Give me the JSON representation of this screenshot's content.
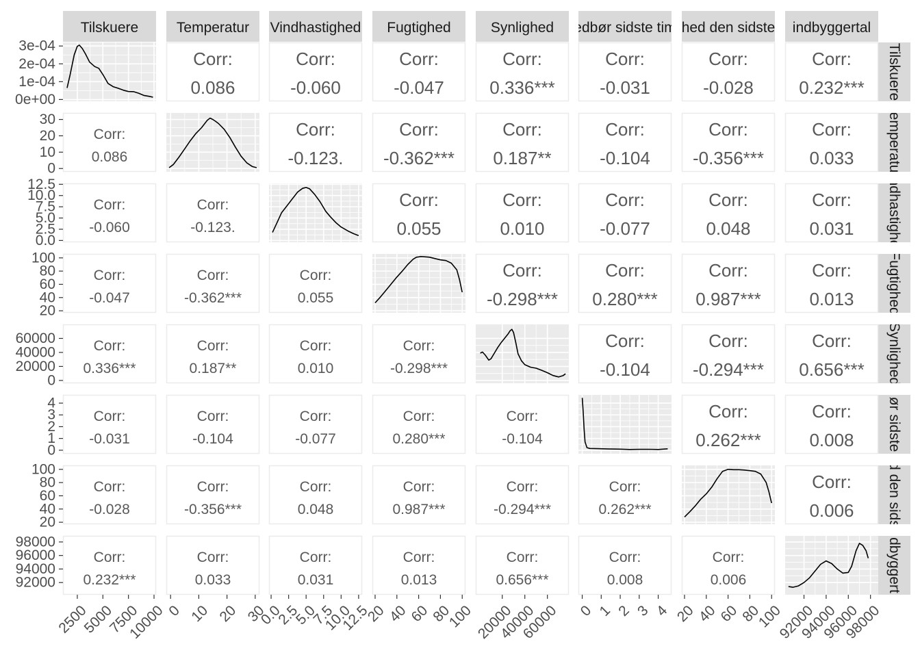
{
  "chart_data": {
    "type": "pairs-plot",
    "variables": [
      {
        "strip": "Tilskuere",
        "row_strip": "Tilskuere"
      },
      {
        "strip": "Temperatur",
        "row_strip": "emperatu"
      },
      {
        "strip": "Vindhastighed",
        "row_strip": "ndhastighe"
      },
      {
        "strip": "Fugtighed",
        "row_strip": "Fugtighed"
      },
      {
        "strip": "Synlighed",
        "row_strip": "Synlighed"
      },
      {
        "strip": "edbør sidste tim",
        "row_strip": "ør sidste"
      },
      {
        "strip": "hed den sidste",
        "row_strip": "d den sids"
      },
      {
        "strip": "indbyggertal",
        "row_strip": "dbyggert"
      }
    ],
    "corr_label": "Corr:",
    "correlations": [
      [
        "",
        "0.086",
        "-0.060",
        "-0.047",
        "0.336***",
        "-0.031",
        "-0.028",
        "0.232***"
      ],
      [
        "0.086",
        "",
        "-0.123.",
        "-0.362***",
        "0.187**",
        "-0.104",
        "-0.356***",
        "0.033"
      ],
      [
        "-0.060",
        "-0.123.",
        "",
        "0.055",
        "0.010",
        "-0.077",
        "0.048",
        "0.031"
      ],
      [
        "-0.047",
        "-0.362***",
        "0.055",
        "",
        "-0.298***",
        "0.280***",
        "0.987***",
        "0.013"
      ],
      [
        "0.336***",
        "0.187**",
        "0.010",
        "-0.298***",
        "",
        "-0.104",
        "-0.294***",
        "0.656***"
      ],
      [
        "-0.031",
        "-0.104",
        "-0.077",
        "0.280***",
        "-0.104",
        "",
        "0.262***",
        "0.008"
      ],
      [
        "-0.028",
        "-0.356***",
        "0.048",
        "0.987***",
        "-0.294***",
        "0.262***",
        "",
        "0.006"
      ],
      [
        "0.232***",
        "0.033",
        "0.031",
        "0.013",
        "0.656***",
        "0.008",
        "0.006",
        ""
      ]
    ],
    "x_axes": [
      {
        "range": [
          1100,
          10200
        ],
        "ticks": [
          2500,
          5000,
          7500,
          10000
        ],
        "labels": [
          "2500",
          "5000",
          "7500",
          "10000"
        ]
      },
      {
        "range": [
          -1.5,
          31.5
        ],
        "ticks": [
          0,
          10,
          20,
          30
        ],
        "labels": [
          "0",
          "10",
          "20",
          "30"
        ]
      },
      {
        "range": [
          -0.3,
          13.0
        ],
        "ticks": [
          0,
          2.5,
          5,
          7.5,
          10,
          12.5
        ],
        "labels": [
          "0.0",
          "2.5",
          "5.0",
          "7.5",
          "10.0",
          "12.5"
        ]
      },
      {
        "range": [
          17.5,
          103
        ],
        "ticks": [
          20,
          40,
          60,
          80,
          100
        ],
        "labels": [
          "20",
          "40",
          "60",
          "80",
          "100"
        ]
      },
      {
        "range": [
          -3500,
          79000
        ],
        "ticks": [
          20000,
          40000,
          60000
        ],
        "labels": [
          "20000",
          "40000",
          "60000"
        ]
      },
      {
        "range": [
          -0.2,
          4.7
        ],
        "ticks": [
          0,
          1,
          2,
          3,
          4
        ],
        "labels": [
          "0",
          "1",
          "2",
          "3",
          "4"
        ]
      },
      {
        "range": [
          17.5,
          103
        ],
        "ticks": [
          20,
          40,
          60,
          80,
          100
        ],
        "labels": [
          "20",
          "40",
          "60",
          "80",
          "100"
        ]
      },
      {
        "range": [
          90300,
          98700
        ],
        "ticks": [
          92000,
          94000,
          96000,
          98000
        ],
        "labels": [
          "92000",
          "94000",
          "96000",
          "98000"
        ]
      }
    ],
    "y_axes": [
      {
        "range": [
          -1e-05,
          0.00032
        ],
        "ticks": [
          0,
          0.0001,
          0.0002,
          0.0003
        ],
        "labels": [
          "0e+00",
          "1e-04",
          "2e-04",
          "3e-04"
        ]
      },
      {
        "range": [
          -2,
          34
        ],
        "ticks": [
          0,
          10,
          20,
          30
        ],
        "labels": [
          "0",
          "10",
          "20",
          "30"
        ]
      },
      {
        "range": [
          -0.4,
          12.7
        ],
        "ticks": [
          0,
          2.5,
          5,
          7.5,
          10,
          12.5
        ],
        "labels": [
          "0.0",
          "2.5",
          "5.0",
          "7.5",
          "10.0",
          "12.5"
        ]
      },
      {
        "range": [
          17,
          106
        ],
        "ticks": [
          20,
          40,
          60,
          80,
          100
        ],
        "labels": [
          "20",
          "40",
          "60",
          "80",
          "100"
        ]
      },
      {
        "range": [
          -4000,
          80000
        ],
        "ticks": [
          0,
          20000,
          40000,
          60000
        ],
        "labels": [
          "0",
          "20000",
          "40000",
          "60000"
        ]
      },
      {
        "range": [
          -0.3,
          4.7
        ],
        "ticks": [
          0,
          1,
          2,
          3,
          4
        ],
        "labels": [
          "0",
          "1",
          "2",
          "3",
          "4"
        ]
      },
      {
        "range": [
          17,
          106
        ],
        "ticks": [
          20,
          40,
          60,
          80,
          100
        ],
        "labels": [
          "20",
          "40",
          "60",
          "80",
          "100"
        ]
      },
      {
        "range": [
          90200,
          98900
        ],
        "ticks": [
          92000,
          94000,
          96000,
          98000
        ],
        "labels": [
          "92000",
          "94000",
          "96000",
          "98000"
        ]
      }
    ],
    "densities": [
      [
        [
          1500,
          6.5e-05
        ],
        [
          1800,
          0.00014
        ],
        [
          2200,
          0.00025
        ],
        [
          2500,
          0.000298
        ],
        [
          2700,
          0.000305
        ],
        [
          3000,
          0.000285
        ],
        [
          3300,
          0.000255
        ],
        [
          3700,
          0.00021
        ],
        [
          4200,
          0.000185
        ],
        [
          4600,
          0.000175
        ],
        [
          5000,
          0.00014
        ],
        [
          5500,
          9e-05
        ],
        [
          6000,
          7.2e-05
        ],
        [
          6500,
          6.3e-05
        ],
        [
          7000,
          5.2e-05
        ],
        [
          7500,
          4.5e-05
        ],
        [
          8000,
          4.4e-05
        ],
        [
          8500,
          3.5e-05
        ],
        [
          9000,
          2.3e-05
        ],
        [
          9500,
          1.8e-05
        ],
        [
          9900,
          1.3e-05
        ]
      ],
      [
        [
          -0.5,
          0.5
        ],
        [
          1,
          2.5
        ],
        [
          3,
          7
        ],
        [
          5,
          12
        ],
        [
          7,
          17
        ],
        [
          9,
          21.5
        ],
        [
          11,
          25
        ],
        [
          13,
          29.5
        ],
        [
          14,
          30.8
        ],
        [
          15,
          30
        ],
        [
          16,
          28.8
        ],
        [
          17,
          27.5
        ],
        [
          19,
          24
        ],
        [
          21,
          19
        ],
        [
          23,
          13
        ],
        [
          25,
          7.5
        ],
        [
          27,
          3.5
        ],
        [
          29,
          1.2
        ],
        [
          30.5,
          0.5
        ]
      ],
      [
        [
          0.2,
          1.8
        ],
        [
          0.8,
          3.8
        ],
        [
          1.5,
          6.2
        ],
        [
          2.3,
          7.8
        ],
        [
          3,
          9.2
        ],
        [
          3.8,
          10.8
        ],
        [
          4.5,
          11.6
        ],
        [
          5,
          11.8
        ],
        [
          5.5,
          11.5
        ],
        [
          6.2,
          10.3
        ],
        [
          7,
          8.6
        ],
        [
          7.8,
          6.5
        ],
        [
          8.5,
          5.2
        ],
        [
          9.3,
          3.9
        ],
        [
          10,
          3
        ],
        [
          11,
          2.1
        ],
        [
          11.8,
          1.5
        ],
        [
          12.5,
          1.1
        ]
      ],
      [
        [
          20,
          32
        ],
        [
          25,
          41
        ],
        [
          30,
          51
        ],
        [
          35,
          61
        ],
        [
          40,
          71
        ],
        [
          45,
          80
        ],
        [
          50,
          90
        ],
        [
          55,
          98
        ],
        [
          58,
          101
        ],
        [
          62,
          102
        ],
        [
          66,
          101.5
        ],
        [
          70,
          101
        ],
        [
          75,
          99
        ],
        [
          80,
          97
        ],
        [
          85,
          96
        ],
        [
          90,
          92
        ],
        [
          95,
          82
        ],
        [
          97.5,
          67
        ],
        [
          100,
          48
        ]
      ],
      [
        [
          500,
          39000
        ],
        [
          2500,
          40500
        ],
        [
          5000,
          36000
        ],
        [
          8000,
          29000
        ],
        [
          10000,
          31000
        ],
        [
          13000,
          39000
        ],
        [
          16000,
          47000
        ],
        [
          19000,
          54000
        ],
        [
          22000,
          60000
        ],
        [
          25000,
          66000
        ],
        [
          27000,
          71000
        ],
        [
          28500,
          73000
        ],
        [
          30000,
          68500
        ],
        [
          32000,
          54000
        ],
        [
          34000,
          38000
        ],
        [
          37000,
          28000
        ],
        [
          40000,
          22500
        ],
        [
          45000,
          19000
        ],
        [
          50000,
          17500
        ],
        [
          55000,
          14500
        ],
        [
          60000,
          11000
        ],
        [
          65000,
          7000
        ],
        [
          70000,
          5000
        ],
        [
          74000,
          7000
        ],
        [
          76000,
          9500
        ]
      ],
      [
        [
          0,
          4.45
        ],
        [
          0.05,
          3.3
        ],
        [
          0.1,
          1.8
        ],
        [
          0.15,
          0.7
        ],
        [
          0.25,
          0.22
        ],
        [
          0.4,
          0.15
        ],
        [
          0.8,
          0.13
        ],
        [
          1.5,
          0.1
        ],
        [
          2,
          0.09
        ],
        [
          2.5,
          0.06
        ],
        [
          3,
          0.07
        ],
        [
          3.5,
          0.08
        ],
        [
          4,
          0.06
        ],
        [
          4.5,
          0.12
        ]
      ],
      [
        [
          20,
          28
        ],
        [
          25,
          36
        ],
        [
          30,
          45
        ],
        [
          35,
          55
        ],
        [
          40,
          63
        ],
        [
          45,
          73
        ],
        [
          50,
          86
        ],
        [
          55,
          97
        ],
        [
          60,
          100
        ],
        [
          65,
          99.5
        ],
        [
          70,
          99.5
        ],
        [
          75,
          99
        ],
        [
          80,
          98
        ],
        [
          85,
          97
        ],
        [
          90,
          93
        ],
        [
          95,
          80
        ],
        [
          97.5,
          66
        ],
        [
          100,
          49
        ]
      ],
      [
        [
          90600,
          91400
        ],
        [
          91000,
          91300
        ],
        [
          91500,
          91500
        ],
        [
          92000,
          92000
        ],
        [
          92500,
          92700
        ],
        [
          93000,
          93700
        ],
        [
          93500,
          94700
        ],
        [
          94000,
          95200
        ],
        [
          94500,
          94800
        ],
        [
          95000,
          94000
        ],
        [
          95500,
          93400
        ],
        [
          96000,
          93500
        ],
        [
          96300,
          94400
        ],
        [
          96700,
          96700
        ],
        [
          97000,
          97800
        ],
        [
          97300,
          97500
        ],
        [
          97600,
          96700
        ],
        [
          97800,
          95600
        ]
      ]
    ]
  }
}
